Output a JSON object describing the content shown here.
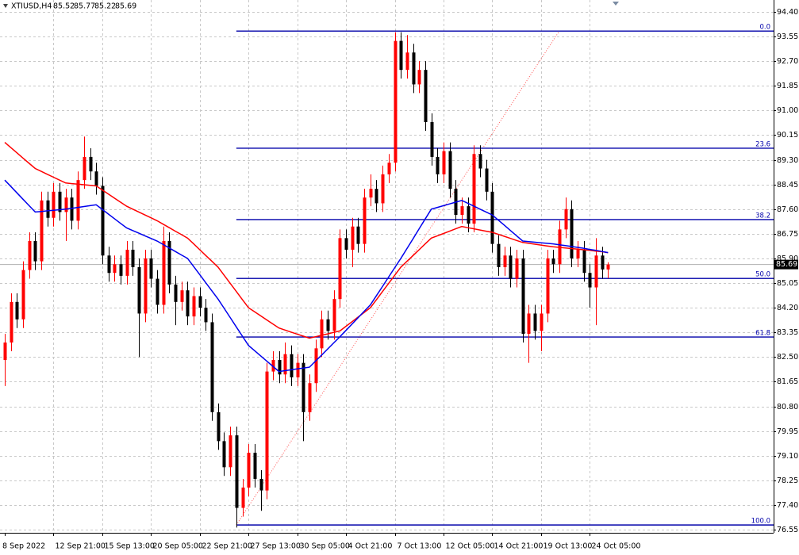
{
  "chart_data": {
    "type": "candlestick",
    "symbol": "XTIUSD,H4",
    "categories": [
      "8 Sep 2022",
      null,
      null,
      null,
      null,
      null,
      null,
      null,
      "12 Sep 21:00",
      null,
      null,
      null,
      null,
      null,
      null,
      null,
      "15 Sep 13:00",
      null,
      null,
      null,
      null,
      null,
      null,
      null,
      "20 Sep 05:00",
      null,
      null,
      null,
      null,
      null,
      null,
      null,
      "22 Sep 21:00",
      null,
      null,
      null,
      null,
      null,
      null,
      null,
      "27 Sep 13:00",
      null,
      null,
      null,
      null,
      null,
      null,
      null,
      "30 Sep 05:00",
      null,
      null,
      null,
      null,
      null,
      null,
      null,
      "4 Oct 21:00",
      null,
      null,
      null,
      null,
      null,
      null,
      null,
      "7 Oct 13:00",
      null,
      null,
      null,
      null,
      null,
      null,
      null,
      "12 Oct 05:00",
      null,
      null,
      null,
      null,
      null,
      null,
      null,
      "14 Oct 21:00",
      null,
      null,
      null,
      null,
      null,
      null,
      null,
      "19 Oct 13:00",
      null,
      null,
      null,
      null,
      null,
      null,
      null,
      "24 Oct 05:00",
      null,
      null,
      null
    ],
    "ohlc": [
      [
        82.4,
        83.3,
        81.5,
        83.0
      ],
      [
        83.0,
        84.7,
        82.7,
        84.4
      ],
      [
        84.4,
        84.7,
        83.5,
        83.8
      ],
      [
        83.8,
        85.8,
        83.5,
        85.5
      ],
      [
        85.5,
        86.8,
        85.2,
        86.5
      ],
      [
        86.5,
        86.8,
        85.5,
        85.8
      ],
      [
        85.8,
        88.2,
        85.5,
        87.9
      ],
      [
        87.9,
        88.2,
        87.0,
        87.3
      ],
      [
        87.3,
        88.5,
        87.0,
        88.2
      ],
      [
        88.2,
        88.5,
        87.2,
        87.5
      ],
      [
        87.5,
        88.3,
        86.5,
        88.0
      ],
      [
        88.0,
        88.3,
        86.9,
        87.2
      ],
      [
        87.2,
        88.9,
        86.9,
        88.6
      ],
      [
        88.6,
        90.1,
        88.3,
        89.4
      ],
      [
        89.4,
        89.7,
        88.6,
        88.9
      ],
      [
        88.9,
        89.2,
        88.1,
        88.4
      ],
      [
        88.4,
        88.7,
        85.7,
        86.0
      ],
      [
        86.0,
        86.3,
        85.1,
        85.4
      ],
      [
        85.4,
        86.0,
        85.1,
        85.7
      ],
      [
        85.7,
        86.0,
        85.0,
        85.3
      ],
      [
        85.3,
        86.5,
        85.0,
        86.2
      ],
      [
        86.2,
        86.5,
        85.3,
        85.6
      ],
      [
        85.6,
        85.9,
        82.5,
        84.0
      ],
      [
        84.0,
        86.2,
        83.7,
        85.9
      ],
      [
        85.9,
        86.2,
        84.9,
        85.2
      ],
      [
        85.2,
        85.5,
        84.0,
        84.3
      ],
      [
        84.3,
        87.0,
        84.0,
        86.5
      ],
      [
        86.5,
        86.8,
        84.7,
        85.0
      ],
      [
        85.0,
        85.3,
        83.6,
        84.4
      ],
      [
        84.4,
        85.1,
        84.1,
        84.8
      ],
      [
        84.8,
        85.1,
        83.6,
        83.9
      ],
      [
        83.9,
        84.9,
        83.6,
        84.6
      ],
      [
        84.6,
        84.9,
        83.9,
        84.2
      ],
      [
        84.2,
        84.5,
        83.4,
        83.7
      ],
      [
        83.7,
        84.0,
        80.3,
        80.6
      ],
      [
        80.6,
        80.9,
        79.3,
        79.6
      ],
      [
        79.6,
        79.9,
        78.4,
        78.7
      ],
      [
        78.7,
        80.1,
        78.4,
        79.8
      ],
      [
        79.8,
        80.1,
        76.62,
        77.3
      ],
      [
        77.3,
        78.3,
        77.0,
        78.0
      ],
      [
        78.0,
        79.5,
        77.7,
        79.2
      ],
      [
        79.2,
        79.5,
        78.0,
        78.3
      ],
      [
        78.3,
        78.6,
        77.2,
        77.9
      ],
      [
        77.9,
        82.3,
        77.6,
        82.0
      ],
      [
        82.0,
        82.7,
        81.7,
        82.4
      ],
      [
        82.4,
        82.7,
        81.6,
        81.9
      ],
      [
        81.9,
        83.0,
        81.6,
        82.6
      ],
      [
        82.6,
        82.9,
        81.5,
        81.8
      ],
      [
        81.8,
        82.6,
        81.5,
        82.3
      ],
      [
        82.3,
        82.6,
        79.6,
        80.6
      ],
      [
        80.6,
        81.9,
        80.3,
        81.6
      ],
      [
        81.6,
        83.1,
        81.3,
        82.8
      ],
      [
        82.8,
        84.1,
        82.5,
        83.8
      ],
      [
        83.8,
        84.1,
        83.1,
        83.4
      ],
      [
        83.4,
        84.8,
        83.1,
        84.5
      ],
      [
        84.5,
        86.9,
        84.2,
        86.6
      ],
      [
        86.6,
        86.9,
        85.9,
        86.2
      ],
      [
        86.2,
        87.3,
        85.6,
        87.0
      ],
      [
        87.0,
        87.3,
        86.1,
        86.4
      ],
      [
        86.4,
        88.3,
        86.1,
        88.0
      ],
      [
        88.0,
        88.8,
        87.7,
        88.3
      ],
      [
        88.3,
        88.6,
        87.5,
        87.8
      ],
      [
        87.8,
        89.1,
        87.5,
        88.8
      ],
      [
        88.8,
        89.5,
        88.5,
        89.2
      ],
      [
        89.2,
        93.7,
        88.9,
        93.4
      ],
      [
        93.4,
        93.7,
        92.1,
        92.4
      ],
      [
        92.4,
        93.6,
        92.1,
        93.0
      ],
      [
        93.0,
        93.3,
        91.6,
        91.9
      ],
      [
        91.9,
        92.7,
        91.6,
        92.4
      ],
      [
        92.4,
        92.7,
        90.3,
        90.6
      ],
      [
        90.6,
        90.9,
        89.1,
        89.4
      ],
      [
        89.4,
        89.7,
        88.5,
        88.8
      ],
      [
        88.8,
        89.9,
        88.5,
        89.6
      ],
      [
        89.6,
        89.9,
        88.0,
        88.3
      ],
      [
        88.3,
        88.6,
        87.1,
        87.4
      ],
      [
        87.4,
        88.0,
        87.1,
        87.7
      ],
      [
        87.7,
        88.0,
        86.8,
        87.1
      ],
      [
        87.1,
        89.8,
        86.8,
        89.5
      ],
      [
        89.5,
        89.8,
        88.7,
        89.0
      ],
      [
        89.0,
        89.3,
        87.9,
        88.2
      ],
      [
        88.2,
        88.5,
        86.1,
        86.4
      ],
      [
        86.4,
        86.7,
        85.3,
        85.6
      ],
      [
        85.6,
        86.3,
        85.3,
        86.0
      ],
      [
        86.0,
        86.3,
        84.9,
        85.2
      ],
      [
        85.2,
        86.2,
        84.9,
        85.9
      ],
      [
        85.9,
        86.2,
        83.0,
        83.3
      ],
      [
        83.3,
        84.3,
        82.3,
        84.0
      ],
      [
        84.0,
        84.3,
        83.1,
        83.4
      ],
      [
        83.4,
        84.3,
        82.7,
        84.0
      ],
      [
        84.0,
        86.2,
        83.7,
        85.9
      ],
      [
        85.9,
        86.2,
        85.4,
        85.7
      ],
      [
        85.7,
        87.2,
        85.4,
        86.9
      ],
      [
        86.9,
        88.0,
        86.6,
        87.6
      ],
      [
        87.6,
        87.9,
        85.6,
        85.9
      ],
      [
        85.9,
        86.5,
        85.6,
        86.2
      ],
      [
        86.2,
        86.5,
        85.1,
        85.4
      ],
      [
        85.4,
        85.7,
        84.2,
        84.9
      ],
      [
        84.9,
        86.6,
        83.6,
        86.0
      ],
      [
        86.0,
        86.3,
        85.2,
        85.52
      ],
      [
        85.52,
        85.77,
        85.22,
        85.69
      ]
    ],
    "up_color": "#ff0000",
    "down_color": "#000000",
    "ma_lines": [
      {
        "color": "#ff0000",
        "values": [
          89.9,
          89.72,
          89.54,
          89.36,
          89.18,
          89.0,
          88.9,
          88.8,
          88.7,
          88.6,
          88.5,
          88.48,
          88.46,
          88.44,
          88.42,
          88.4,
          88.26,
          88.12,
          87.98,
          87.84,
          87.7,
          87.6,
          87.5,
          87.4,
          87.3,
          87.2,
          87.08,
          86.96,
          86.84,
          86.72,
          86.6,
          86.4,
          86.2,
          86.0,
          85.8,
          85.6,
          85.32,
          85.04,
          84.76,
          84.48,
          84.2,
          84.06,
          83.92,
          83.78,
          83.64,
          83.5,
          83.43,
          83.36,
          83.29,
          83.22,
          83.15,
          83.2,
          83.25,
          83.3,
          83.35,
          83.4,
          83.56,
          83.72,
          83.88,
          84.04,
          84.2,
          84.48,
          84.76,
          85.04,
          85.32,
          85.6,
          85.8,
          86.0,
          86.2,
          86.4,
          86.6,
          86.68,
          86.76,
          86.84,
          86.92,
          87.0,
          86.96,
          86.92,
          86.88,
          86.84,
          86.8,
          86.73,
          86.66,
          86.59,
          86.52,
          86.45,
          86.42,
          86.39,
          86.36,
          86.33,
          86.3,
          86.28,
          86.26,
          86.24,
          86.22,
          86.2,
          86.18,
          86.15,
          86.13,
          86.1
        ]
      },
      {
        "color": "#0000ee",
        "values": [
          88.6,
          88.38,
          88.16,
          87.94,
          87.72,
          87.5,
          87.52,
          87.54,
          87.56,
          87.58,
          87.6,
          87.63,
          87.66,
          87.69,
          87.72,
          87.75,
          87.59,
          87.43,
          87.27,
          87.11,
          86.95,
          86.86,
          86.77,
          86.68,
          86.59,
          86.5,
          86.38,
          86.26,
          86.14,
          86.02,
          85.9,
          85.62,
          85.34,
          85.06,
          84.78,
          84.5,
          84.18,
          83.86,
          83.54,
          83.22,
          82.9,
          82.72,
          82.54,
          82.36,
          82.18,
          82.0,
          82.03,
          82.06,
          82.09,
          82.12,
          82.15,
          82.36,
          82.57,
          82.78,
          82.99,
          83.2,
          83.42,
          83.64,
          83.86,
          84.08,
          84.3,
          84.62,
          84.94,
          85.26,
          85.58,
          85.9,
          86.24,
          86.58,
          86.92,
          87.26,
          87.6,
          87.66,
          87.72,
          87.78,
          87.84,
          87.9,
          87.8,
          87.7,
          87.6,
          87.5,
          87.4,
          87.22,
          87.04,
          86.86,
          86.68,
          86.5,
          86.48,
          86.46,
          86.44,
          86.42,
          86.4,
          86.37,
          86.34,
          86.31,
          86.28,
          86.25,
          86.21,
          86.18,
          86.14,
          86.1
        ]
      }
    ],
    "fib_levels": [
      {
        "label": "0.0",
        "price": 93.74
      },
      {
        "label": "23.6",
        "price": 89.7
      },
      {
        "label": "38.2",
        "price": 87.24
      },
      {
        "label": "50.0",
        "price": 85.21
      },
      {
        "label": "61.8",
        "price": 83.19
      },
      {
        "label": "100.0",
        "price": 76.71
      }
    ],
    "fib_color": "#0000aa",
    "ylim": [
      76.44,
      94.81
    ],
    "yticks": [
      {
        "value": 94.4,
        "label": "94.40"
      },
      93.55,
      {
        "value": 92.7,
        "label": "92.70"
      },
      91.85,
      {
        "value": 91,
        "label": "91.00"
      },
      90.15,
      {
        "value": 89.3,
        "label": "89.30"
      },
      88.45,
      {
        "value": 87.6,
        "label": "87.60"
      },
      86.75,
      {
        "value": 85.9,
        "label": "85.90"
      },
      85.05,
      {
        "value": 84.2,
        "label": "84.20"
      },
      83.35,
      {
        "value": 82.5,
        "label": "82.50"
      },
      81.65,
      {
        "value": 80.8,
        "label": "80.80"
      },
      79.95,
      {
        "value": 79.1,
        "label": "79.10"
      },
      78.25,
      {
        "value": 77.4,
        "label": "77.40"
      },
      76.55
    ],
    "grid": true
  }
}
